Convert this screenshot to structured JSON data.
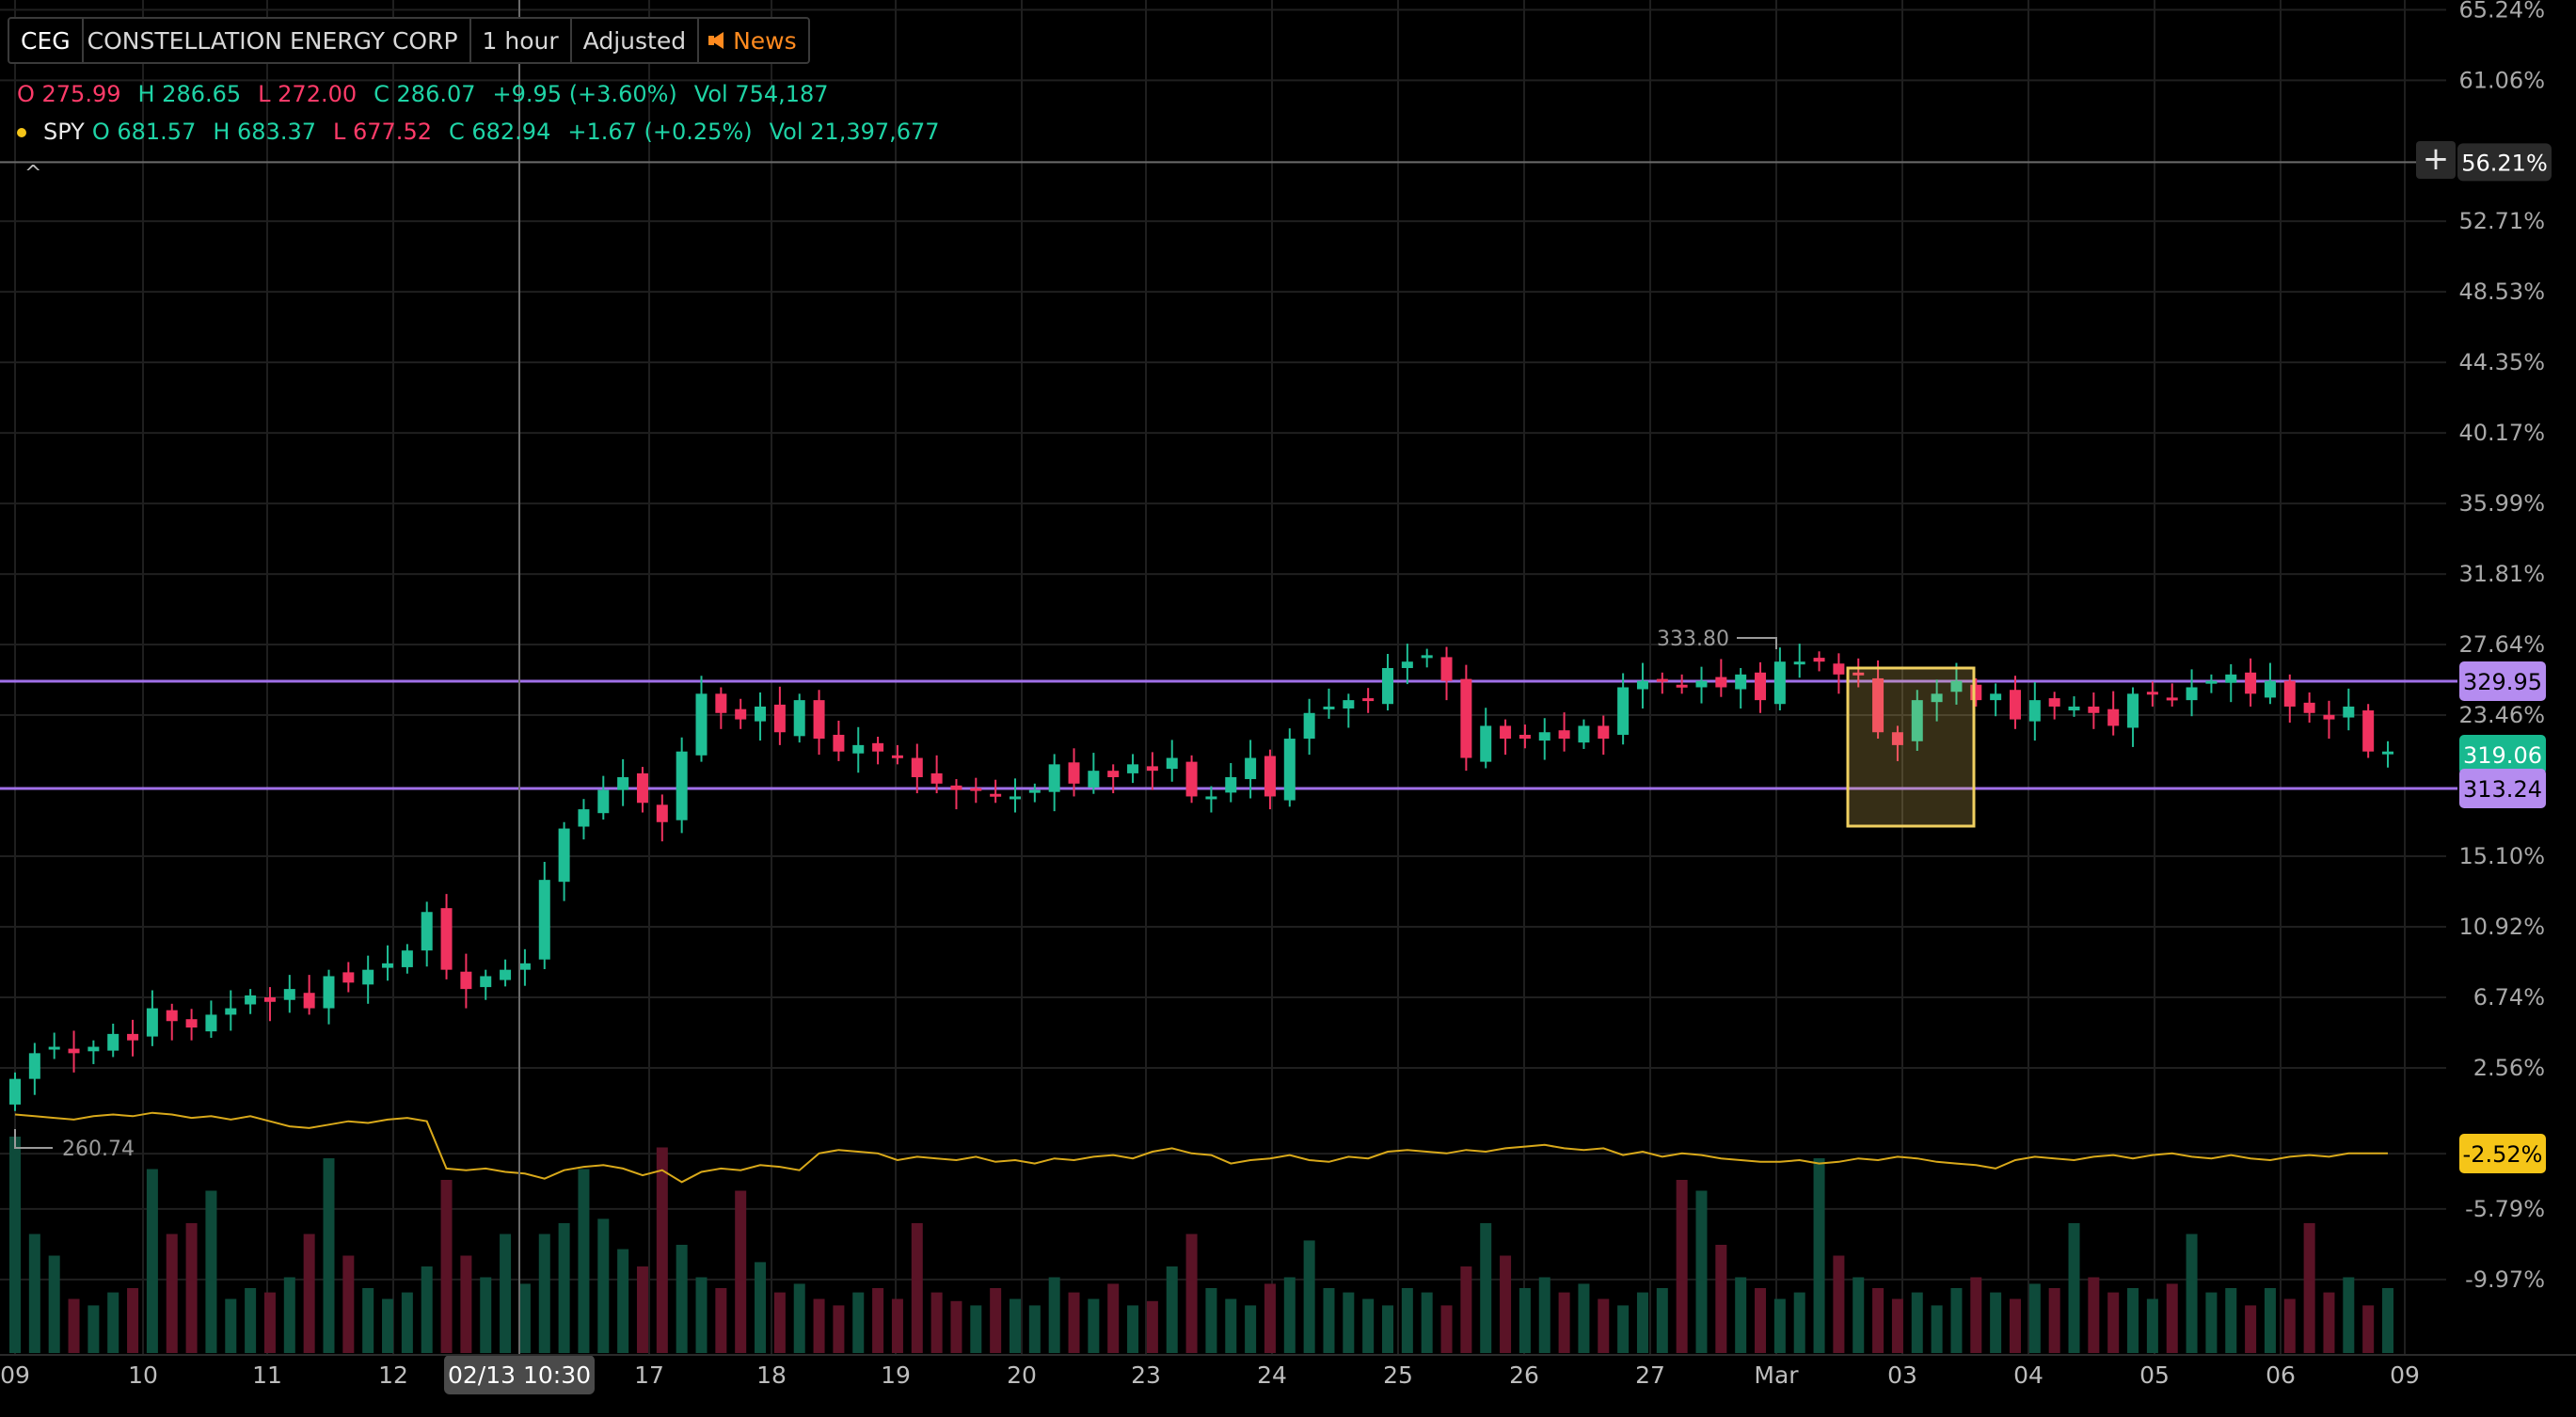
{
  "toolbar": {
    "symbol": "CEG",
    "company": "CONSTELLATION ENERGY CORP",
    "interval": "1 hour",
    "adjustment": "Adjusted",
    "news": "News"
  },
  "quote_ceg": {
    "open": "O 275.99",
    "high": "H 286.65",
    "low": "L 272.00",
    "close": "C 286.07",
    "change": "+9.95 (+3.60%)",
    "volume": "Vol 754,187"
  },
  "quote_spy": {
    "symbol": "SPY",
    "open": "O 681.57",
    "high": "H 683.37",
    "low": "L 677.52",
    "close": "C 682.94",
    "change": "+1.67 (+0.25%)",
    "volume": "Vol 21,397,677"
  },
  "collapse_caret": "^",
  "plus_button": "+",
  "colors": {
    "up": "#1fbe95",
    "down": "#f0325f",
    "spy": "#d9a91a",
    "level": "#a070e8",
    "grid": "#1f1f1f"
  },
  "chart_data": {
    "type": "candlestick",
    "y_axis_ticks": [
      "65.24%",
      "61.06%",
      "56.21%",
      "52.71%",
      "48.53%",
      "44.35%",
      "40.17%",
      "35.99%",
      "31.81%",
      "27.64%",
      "23.46%",
      "15.10%",
      "10.92%",
      "6.74%",
      "2.56%",
      "-2.52%",
      "-5.79%",
      "-9.97%"
    ],
    "x_axis_ticks": [
      "09",
      "10",
      "11",
      "12",
      "02/13 10:30",
      "17",
      "18",
      "19",
      "20",
      "23",
      "24",
      "25",
      "26",
      "27",
      "Mar",
      "03",
      "04",
      "05",
      "06",
      "09"
    ],
    "crosshair_label": "02/13 10:30",
    "crosshair_value": "56.21%",
    "price_labels": [
      {
        "text": "329.95",
        "kind": "level"
      },
      {
        "text": "319.06",
        "kind": "last"
      },
      {
        "text": "313.24",
        "kind": "level"
      },
      {
        "text": "-2.52%",
        "kind": "spy"
      }
    ],
    "annotations": {
      "high": "333.80",
      "low": "260.74"
    },
    "candles_close": [
      268,
      272,
      273,
      272,
      273,
      275,
      274,
      279,
      277,
      276,
      278,
      279,
      281,
      280,
      282,
      279,
      284,
      283,
      285,
      286,
      288,
      294,
      285,
      282,
      284,
      285,
      286,
      299,
      307,
      310,
      313,
      315,
      311,
      308,
      319,
      328,
      325,
      324,
      326,
      322,
      327,
      321,
      319,
      320,
      319,
      318,
      315,
      314,
      313,
      313,
      312,
      312,
      313,
      317,
      314,
      316,
      315,
      317,
      316,
      318,
      312,
      312,
      315,
      318,
      312,
      321,
      325,
      326,
      327,
      327,
      332,
      333,
      334,
      330,
      318,
      323,
      321,
      321,
      322,
      321,
      323,
      321,
      329,
      330,
      330,
      329,
      330,
      329,
      331,
      327,
      333,
      333,
      333,
      331,
      331,
      322,
      320,
      327,
      328,
      330,
      327,
      328,
      324,
      327,
      326,
      326,
      325,
      323,
      328,
      328,
      327,
      329,
      330,
      331,
      328,
      330,
      326,
      325,
      324,
      326,
      319,
      319
    ],
    "spy_pct": [
      -0.2,
      -0.3,
      -0.4,
      -0.5,
      -0.3,
      -0.2,
      -0.3,
      -0.1,
      -0.2,
      -0.4,
      -0.3,
      -0.5,
      -0.3,
      -0.6,
      -0.9,
      -1.0,
      -0.8,
      -0.6,
      -0.7,
      -0.5,
      -0.4,
      -0.6,
      -3.4,
      -3.5,
      -3.4,
      -3.6,
      -3.7,
      -4.0,
      -3.5,
      -3.3,
      -3.2,
      -3.4,
      -3.8,
      -3.5,
      -4.2,
      -3.6,
      -3.4,
      -3.5,
      -3.2,
      -3.3,
      -3.5,
      -2.5,
      -2.3,
      -2.4,
      -2.5,
      -2.9,
      -2.7,
      -2.8,
      -2.9,
      -2.7,
      -3.0,
      -2.9,
      -3.1,
      -2.8,
      -2.9,
      -2.7,
      -2.6,
      -2.8,
      -2.4,
      -2.2,
      -2.5,
      -2.6,
      -3.1,
      -2.9,
      -2.8,
      -2.6,
      -2.9,
      -3.0,
      -2.7,
      -2.8,
      -2.4,
      -2.3,
      -2.4,
      -2.5,
      -2.3,
      -2.4,
      -2.2,
      -2.1,
      -2.0,
      -2.2,
      -2.3,
      -2.2,
      -2.6,
      -2.4,
      -2.7,
      -2.5,
      -2.6,
      -2.8,
      -2.9,
      -3.0,
      -3.0,
      -2.9,
      -3.1,
      -3.0,
      -2.8,
      -2.9,
      -2.7,
      -2.8,
      -3.0,
      -3.1,
      -3.2,
      -3.4,
      -2.9,
      -2.7,
      -2.8,
      -2.9,
      -2.7,
      -2.6,
      -2.8,
      -2.6,
      -2.5,
      -2.7,
      -2.8,
      -2.6,
      -2.8,
      -2.9,
      -2.7,
      -2.6,
      -2.7,
      -2.5,
      -2.5,
      -2.5
    ],
    "volume_rel": [
      1.0,
      0.55,
      0.45,
      0.25,
      0.22,
      0.28,
      0.3,
      0.85,
      0.55,
      0.6,
      0.75,
      0.25,
      0.3,
      0.28,
      0.35,
      0.55,
      0.9,
      0.45,
      0.3,
      0.25,
      0.28,
      0.4,
      0.8,
      0.45,
      0.35,
      0.55,
      0.32,
      0.55,
      0.6,
      0.85,
      0.62,
      0.48,
      0.4,
      0.95,
      0.5,
      0.35,
      0.3,
      0.75,
      0.42,
      0.28,
      0.32,
      0.25,
      0.22,
      0.28,
      0.3,
      0.25,
      0.6,
      0.28,
      0.24,
      0.22,
      0.3,
      0.25,
      0.22,
      0.35,
      0.28,
      0.25,
      0.32,
      0.22,
      0.24,
      0.4,
      0.55,
      0.3,
      0.25,
      0.22,
      0.32,
      0.35,
      0.52,
      0.3,
      0.28,
      0.25,
      0.22,
      0.3,
      0.28,
      0.22,
      0.4,
      0.6,
      0.45,
      0.3,
      0.35,
      0.28,
      0.32,
      0.25,
      0.22,
      0.28,
      0.3,
      0.8,
      0.75,
      0.5,
      0.35,
      0.3,
      0.25,
      0.28,
      0.9,
      0.45,
      0.35,
      0.3,
      0.25,
      0.28,
      0.22,
      0.3,
      0.35,
      0.28,
      0.25,
      0.32,
      0.3,
      0.6,
      0.35,
      0.28,
      0.3,
      0.25,
      0.32,
      0.55,
      0.28,
      0.3,
      0.22,
      0.3,
      0.25,
      0.6,
      0.28,
      0.35,
      0.22,
      0.3
    ]
  }
}
